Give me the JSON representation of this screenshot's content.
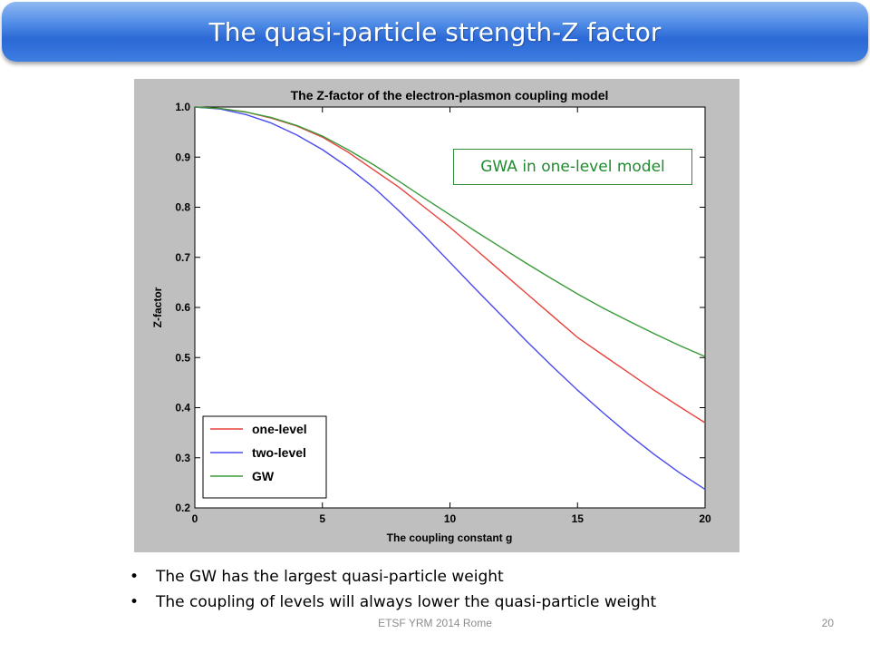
{
  "slide": {
    "title": "The quasi-particle strength-Z factor",
    "annotation": "GWA in one-level model",
    "bullets": [
      "The GW has the largest quasi-particle weight",
      "The coupling of levels will  always lower the quasi-particle weight"
    ],
    "footer": "ETSF YRM 2014 Rome",
    "page_number": "20"
  },
  "chart_data": {
    "type": "line",
    "title": "The Z-factor of the electron-plasmon coupling model",
    "xlabel": "The coupling constant g",
    "ylabel": "Z-factor",
    "xlim": [
      0,
      20
    ],
    "ylim": [
      0.2,
      1.0
    ],
    "xticks": [
      0,
      5,
      10,
      15,
      20
    ],
    "yticks": [
      0.2,
      0.3,
      0.4,
      0.5,
      0.6,
      0.7,
      0.8,
      0.9,
      1.0
    ],
    "grid": false,
    "legend": "lower-left",
    "x": [
      0,
      1,
      2,
      3,
      4,
      5,
      6,
      7,
      8,
      9,
      10,
      11,
      12,
      13,
      14,
      15,
      16,
      17,
      18,
      19,
      20
    ],
    "series": [
      {
        "name": "one-level",
        "color": "#e8413c",
        "values": [
          1.0,
          0.997,
          0.99,
          0.978,
          0.962,
          0.94,
          0.91,
          0.875,
          0.84,
          0.8,
          0.76,
          0.716,
          0.672,
          0.628,
          0.584,
          0.54,
          0.505,
          0.47,
          0.435,
          0.402,
          0.37
        ]
      },
      {
        "name": "two-level",
        "color": "#4a4af0",
        "values": [
          1.0,
          0.996,
          0.985,
          0.968,
          0.944,
          0.915,
          0.88,
          0.84,
          0.793,
          0.743,
          0.69,
          0.637,
          0.585,
          0.533,
          0.483,
          0.435,
          0.39,
          0.347,
          0.307,
          0.27,
          0.237
        ]
      },
      {
        "name": "GW",
        "color": "#3a9a3a",
        "values": [
          1.0,
          0.997,
          0.99,
          0.979,
          0.963,
          0.942,
          0.915,
          0.885,
          0.852,
          0.818,
          0.785,
          0.752,
          0.72,
          0.688,
          0.657,
          0.627,
          0.599,
          0.573,
          0.548,
          0.524,
          0.502
        ]
      }
    ]
  }
}
